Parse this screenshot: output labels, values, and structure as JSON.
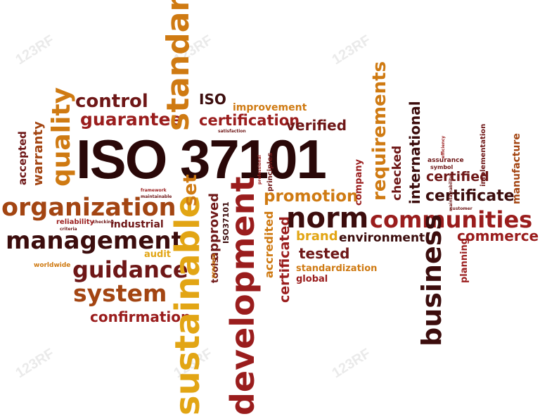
{
  "watermark": "123RF",
  "colors": {
    "dark": "#3c0d0d",
    "maroon": "#6e1717",
    "red": "#9a1d1d",
    "brown": "#a34512",
    "orange": "#cf7a12",
    "gold": "#e2a514"
  },
  "words": {
    "title": "ISO 37101",
    "organization": "organization",
    "management": "management",
    "guidance": "guidance",
    "system": "system",
    "confirmation": "confirmation",
    "control": "control",
    "guarantee": "guarantee",
    "quality": "quality",
    "warranty": "warranty",
    "accepted": "accepted",
    "reliability": "reliability",
    "industrial": "industrial",
    "audit": "audit",
    "worldwide": "worldwide",
    "criteria": "criteria",
    "checking": "checking",
    "standard": "standard",
    "sustainable": "sustainable",
    "set": "set",
    "iso": "ISO",
    "improvement": "improvement",
    "certification": "certification",
    "verified": "verified",
    "development": "development",
    "approved": "approved",
    "tools": "tools",
    "process": "process",
    "iso_small": "ISO37101",
    "promotion": "promotion",
    "norm": "norm",
    "accredited": "accredited",
    "certificated": "certificated",
    "brand": "brand",
    "environment": "environment",
    "tested": "tested",
    "standardization": "standardization",
    "global": "global",
    "requirements": "requirements",
    "company": "company",
    "checked": "checked",
    "international": "international",
    "certified": "certified",
    "certificate": "certificate",
    "communities": "communities",
    "commerce": "commerce",
    "business": "business",
    "planning": "planning",
    "assurance": "assurance",
    "symbol": "symbol",
    "implementation": "implementation",
    "manufacture": "manufacture",
    "principles": "principles",
    "framework": "framework",
    "professional": "professional",
    "satisfaction": "satisfaction",
    "maintainable": "maintainable",
    "sustainability": "maintainability",
    "customer": "customer",
    "efficiency": "efficiency"
  }
}
